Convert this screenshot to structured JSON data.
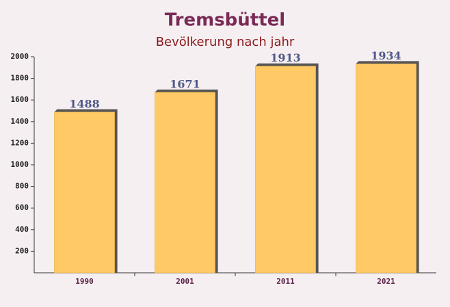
{
  "chart_data": {
    "type": "bar",
    "title": "Tremsbüttel",
    "subtitle": "Bevölkerung nach jahr",
    "categories": [
      "1990",
      "2001",
      "2011",
      "2021"
    ],
    "values": [
      1488,
      1671,
      1913,
      1934
    ],
    "color": "#ffc966",
    "ylim": [
      0,
      2000
    ],
    "yticks": [
      200,
      400,
      600,
      800,
      1000,
      1200,
      1400,
      1600,
      1800,
      2000
    ],
    "grid": false
  }
}
